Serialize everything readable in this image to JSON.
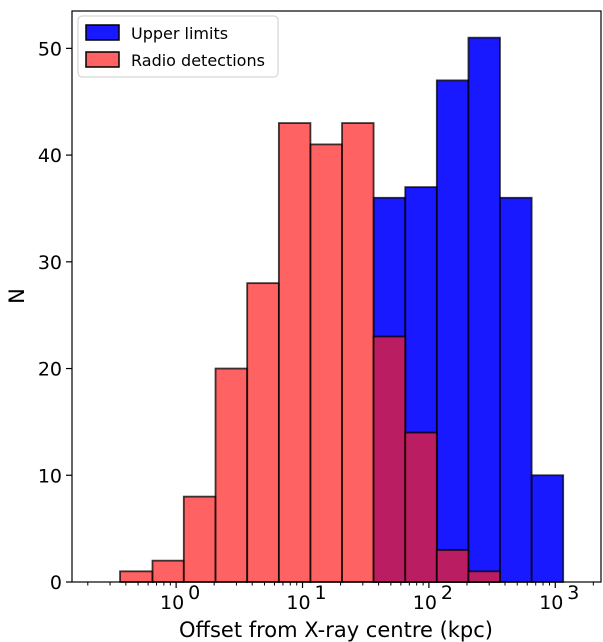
{
  "chart_data": {
    "type": "bar",
    "xscale": "log",
    "xlabel": "Offset from X-ray centre (kpc)",
    "ylabel": "N",
    "xlim": [
      0.15,
      2300
    ],
    "ylim": [
      0,
      53.5
    ],
    "yticks": [
      0,
      10,
      20,
      30,
      40,
      50
    ],
    "xticks": [
      {
        "value": 1,
        "label": "10",
        "exp": "0"
      },
      {
        "value": 10,
        "label": "10",
        "exp": "1"
      },
      {
        "value": 100,
        "label": "10",
        "exp": "2"
      },
      {
        "value": 1000,
        "label": "10",
        "exp": "3"
      }
    ],
    "bin_edges": [
      0.2,
      0.36,
      0.65,
      1.15,
      2.05,
      3.65,
      6.5,
      11.55,
      20.55,
      36.5,
      65,
      115.5,
      205.5,
      365,
      650,
      1155,
      2050
    ],
    "series": [
      {
        "name": "Upper limits",
        "color": "#0000ff",
        "values": [
          0,
          0,
          0,
          0,
          0,
          0,
          0,
          0,
          0,
          36,
          37,
          47,
          51,
          36,
          10,
          0
        ]
      },
      {
        "name": "Radio detections",
        "color": "#ff2020",
        "values": [
          0,
          1,
          2,
          8,
          20,
          28,
          43,
          41,
          43,
          23,
          14,
          3,
          1,
          0,
          0,
          0
        ]
      }
    ],
    "legend": {
      "position": "top-left"
    },
    "grid": false
  }
}
